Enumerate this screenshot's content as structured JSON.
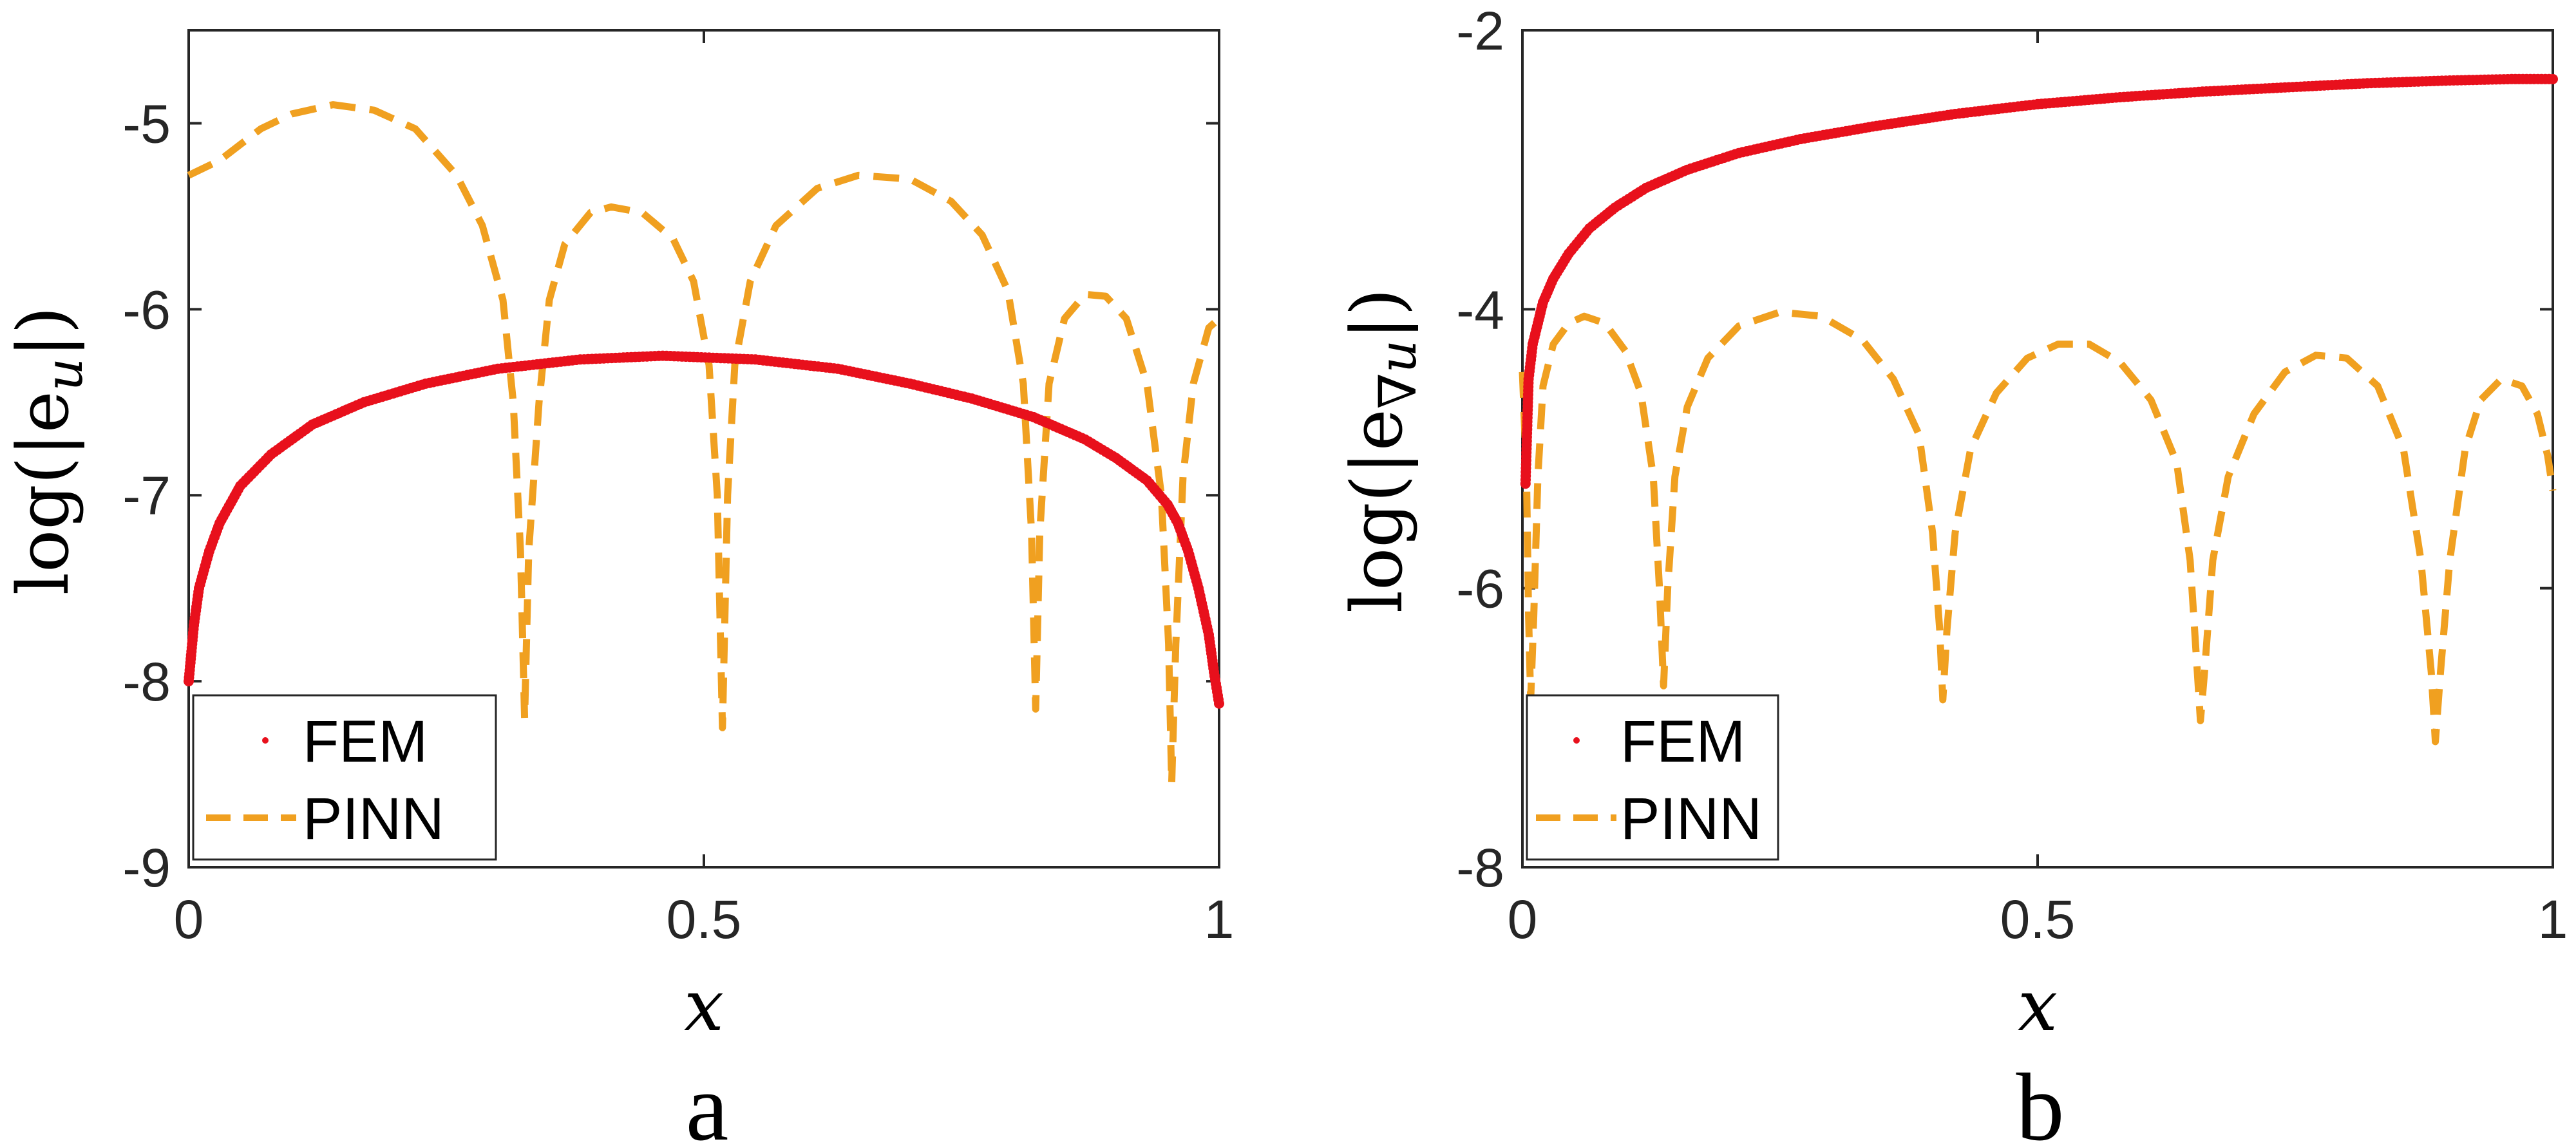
{
  "colors": {
    "fem": "#e8101c",
    "pinn": "#f0a020",
    "axis": "#262626"
  },
  "chart_data": [
    {
      "type": "line",
      "panel_label": "a",
      "xlabel": "x",
      "ylabel": {
        "log": "log(|e",
        "sub": "u",
        "close": "|)"
      },
      "xlim": [
        0,
        1
      ],
      "ylim": [
        -9,
        -4.5
      ],
      "xticks": [
        "0",
        "0.5",
        "1"
      ],
      "xtick_values": [
        0,
        0.5,
        1
      ],
      "yticks": [
        "-5",
        "-6",
        "-7",
        "-8",
        "-9"
      ],
      "ytick_values": [
        -5,
        -6,
        -7,
        -8,
        -9
      ],
      "legend": {
        "position": "bottom-left",
        "entries": [
          "FEM",
          "PINN"
        ]
      },
      "series": [
        {
          "name": "FEM",
          "style": "dots",
          "points": [
            [
              0,
              -8.0
            ],
            [
              0.005,
              -7.7
            ],
            [
              0.01,
              -7.5
            ],
            [
              0.02,
              -7.3
            ],
            [
              0.03,
              -7.15
            ],
            [
              0.05,
              -6.95
            ],
            [
              0.08,
              -6.78
            ],
            [
              0.12,
              -6.62
            ],
            [
              0.17,
              -6.5
            ],
            [
              0.23,
              -6.4
            ],
            [
              0.3,
              -6.32
            ],
            [
              0.38,
              -6.27
            ],
            [
              0.46,
              -6.25
            ],
            [
              0.55,
              -6.27
            ],
            [
              0.63,
              -6.32
            ],
            [
              0.7,
              -6.4
            ],
            [
              0.76,
              -6.48
            ],
            [
              0.82,
              -6.58
            ],
            [
              0.87,
              -6.7
            ],
            [
              0.9,
              -6.8
            ],
            [
              0.93,
              -6.92
            ],
            [
              0.95,
              -7.05
            ],
            [
              0.96,
              -7.15
            ],
            [
              0.97,
              -7.3
            ],
            [
              0.98,
              -7.5
            ],
            [
              0.99,
              -7.75
            ],
            [
              0.995,
              -7.95
            ],
            [
              1.0,
              -8.12
            ]
          ]
        },
        {
          "name": "PINN",
          "style": "dashed",
          "points": [
            [
              0,
              -5.28
            ],
            [
              0.03,
              -5.2
            ],
            [
              0.07,
              -5.03
            ],
            [
              0.1,
              -4.95
            ],
            [
              0.14,
              -4.9
            ],
            [
              0.18,
              -4.93
            ],
            [
              0.22,
              -5.03
            ],
            [
              0.26,
              -5.28
            ],
            [
              0.285,
              -5.55
            ],
            [
              0.305,
              -5.95
            ],
            [
              0.315,
              -6.5
            ],
            [
              0.322,
              -7.3
            ],
            [
              0.326,
              -8.2
            ],
            [
              0.33,
              -7.3
            ],
            [
              0.34,
              -6.5
            ],
            [
              0.35,
              -5.95
            ],
            [
              0.365,
              -5.65
            ],
            [
              0.39,
              -5.48
            ],
            [
              0.41,
              -5.45
            ],
            [
              0.44,
              -5.48
            ],
            [
              0.47,
              -5.62
            ],
            [
              0.49,
              -5.85
            ],
            [
              0.505,
              -6.3
            ],
            [
              0.513,
              -7.0
            ],
            [
              0.518,
              -8.25
            ],
            [
              0.523,
              -7.0
            ],
            [
              0.53,
              -6.3
            ],
            [
              0.545,
              -5.85
            ],
            [
              0.57,
              -5.55
            ],
            [
              0.61,
              -5.35
            ],
            [
              0.65,
              -5.28
            ],
            [
              0.7,
              -5.3
            ],
            [
              0.74,
              -5.42
            ],
            [
              0.77,
              -5.6
            ],
            [
              0.795,
              -5.9
            ],
            [
              0.81,
              -6.4
            ],
            [
              0.818,
              -7.2
            ],
            [
              0.822,
              -8.15
            ],
            [
              0.826,
              -7.2
            ],
            [
              0.835,
              -6.4
            ],
            [
              0.85,
              -6.05
            ],
            [
              0.87,
              -5.92
            ],
            [
              0.89,
              -5.93
            ],
            [
              0.91,
              -6.05
            ],
            [
              0.93,
              -6.4
            ],
            [
              0.944,
              -7.0
            ],
            [
              0.951,
              -7.8
            ],
            [
              0.954,
              -8.55
            ],
            [
              0.958,
              -7.8
            ],
            [
              0.965,
              -6.9
            ],
            [
              0.975,
              -6.4
            ],
            [
              0.99,
              -6.1
            ],
            [
              1.0,
              -6.05
            ]
          ]
        }
      ]
    },
    {
      "type": "line",
      "panel_label": "b",
      "xlabel": "x",
      "ylabel": {
        "log": "log(|e",
        "sub": "∇u",
        "close": "|)"
      },
      "xlim": [
        0,
        1
      ],
      "ylim": [
        -8,
        -2
      ],
      "xticks": [
        "0",
        "0.5",
        "1"
      ],
      "xtick_values": [
        0,
        0.5,
        1
      ],
      "yticks": [
        "-2",
        "-4",
        "-6",
        "-8"
      ],
      "ytick_values": [
        -2,
        -4,
        -6,
        -8
      ],
      "legend": {
        "position": "bottom-left",
        "entries": [
          "FEM",
          "PINN"
        ]
      },
      "series": [
        {
          "name": "FEM",
          "style": "dots",
          "points": [
            [
              0.003,
              -5.25
            ],
            [
              0.006,
              -4.5
            ],
            [
              0.01,
              -4.25
            ],
            [
              0.015,
              -4.1
            ],
            [
              0.02,
              -3.95
            ],
            [
              0.03,
              -3.78
            ],
            [
              0.045,
              -3.6
            ],
            [
              0.065,
              -3.42
            ],
            [
              0.09,
              -3.27
            ],
            [
              0.12,
              -3.13
            ],
            [
              0.16,
              -3.0
            ],
            [
              0.21,
              -2.88
            ],
            [
              0.27,
              -2.78
            ],
            [
              0.34,
              -2.69
            ],
            [
              0.42,
              -2.6
            ],
            [
              0.5,
              -2.53
            ],
            [
              0.58,
              -2.48
            ],
            [
              0.66,
              -2.44
            ],
            [
              0.74,
              -2.41
            ],
            [
              0.82,
              -2.38
            ],
            [
              0.9,
              -2.36
            ],
            [
              0.96,
              -2.35
            ],
            [
              1.0,
              -2.35
            ]
          ]
        },
        {
          "name": "PINN",
          "style": "dashed",
          "points": [
            [
              0.0,
              -4.45
            ],
            [
              0.004,
              -5.2
            ],
            [
              0.006,
              -6.2
            ],
            [
              0.008,
              -6.8
            ],
            [
              0.011,
              -6.2
            ],
            [
              0.015,
              -5.2
            ],
            [
              0.02,
              -4.55
            ],
            [
              0.03,
              -4.25
            ],
            [
              0.045,
              -4.1
            ],
            [
              0.06,
              -4.05
            ],
            [
              0.08,
              -4.1
            ],
            [
              0.1,
              -4.3
            ],
            [
              0.115,
              -4.6
            ],
            [
              0.127,
              -5.2
            ],
            [
              0.133,
              -6.0
            ],
            [
              0.137,
              -6.7
            ],
            [
              0.141,
              -6.0
            ],
            [
              0.148,
              -5.2
            ],
            [
              0.16,
              -4.7
            ],
            [
              0.18,
              -4.35
            ],
            [
              0.21,
              -4.12
            ],
            [
              0.25,
              -4.02
            ],
            [
              0.29,
              -4.05
            ],
            [
              0.33,
              -4.22
            ],
            [
              0.36,
              -4.5
            ],
            [
              0.385,
              -4.9
            ],
            [
              0.398,
              -5.6
            ],
            [
              0.405,
              -6.3
            ],
            [
              0.408,
              -6.8
            ],
            [
              0.412,
              -6.3
            ],
            [
              0.42,
              -5.6
            ],
            [
              0.435,
              -5.0
            ],
            [
              0.46,
              -4.6
            ],
            [
              0.49,
              -4.35
            ],
            [
              0.52,
              -4.25
            ],
            [
              0.55,
              -4.25
            ],
            [
              0.58,
              -4.38
            ],
            [
              0.61,
              -4.65
            ],
            [
              0.635,
              -5.1
            ],
            [
              0.648,
              -5.8
            ],
            [
              0.655,
              -6.6
            ],
            [
              0.658,
              -6.95
            ],
            [
              0.662,
              -6.6
            ],
            [
              0.67,
              -5.8
            ],
            [
              0.685,
              -5.2
            ],
            [
              0.71,
              -4.75
            ],
            [
              0.74,
              -4.45
            ],
            [
              0.77,
              -4.33
            ],
            [
              0.8,
              -4.35
            ],
            [
              0.83,
              -4.55
            ],
            [
              0.855,
              -5.0
            ],
            [
              0.872,
              -5.8
            ],
            [
              0.882,
              -6.6
            ],
            [
              0.886,
              -7.1
            ],
            [
              0.891,
              -6.6
            ],
            [
              0.9,
              -5.8
            ],
            [
              0.915,
              -5.0
            ],
            [
              0.93,
              -4.65
            ],
            [
              0.95,
              -4.5
            ],
            [
              0.97,
              -4.55
            ],
            [
              0.985,
              -4.75
            ],
            [
              0.995,
              -5.05
            ],
            [
              1.0,
              -5.3
            ]
          ]
        }
      ]
    }
  ]
}
